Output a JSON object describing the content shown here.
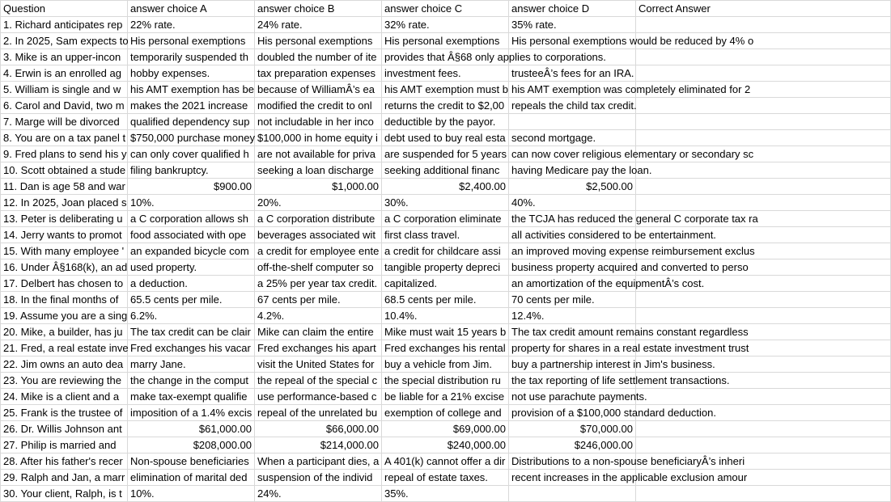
{
  "headers": [
    "Question",
    "answer choice A",
    "answer choice B",
    "answer choice C",
    "answer choice D",
    "Correct Answer"
  ],
  "rows": [
    [
      "1. Richard anticipates rep",
      "22% rate.",
      "24% rate.",
      "32% rate.",
      "35% rate.",
      ""
    ],
    [
      "2. In 2025, Sam expects to",
      "His personal exemptions",
      "His personal exemptions",
      "His personal exemptions",
      "His personal exemptions would be reduced by 4% o",
      ""
    ],
    [
      "3. Mike is an upper-incon",
      "temporarily suspended th",
      "doubled the number of ite",
      "provides that Â§68 only applies to corporations.",
      "",
      ""
    ],
    [
      "4. Erwin is an enrolled ag",
      "hobby expenses.",
      "tax preparation expenses",
      "investment fees.",
      "trusteeÂ’s fees for an IRA.",
      ""
    ],
    [
      "5. William is single and w",
      "his AMT exemption has be",
      "because of WilliamÂ’s ea",
      "his AMT exemption must b",
      "his AMT exemption was completely eliminated for 2",
      ""
    ],
    [
      "6. Carol and David, two m",
      "makes the 2021 increase",
      "modified the credit to onl",
      "returns the credit to $2,00",
      "repeals the child tax credit.",
      ""
    ],
    [
      "7. Marge will be divorced",
      "qualified dependency sup",
      "not includable in her inco",
      "deductible by the payor.",
      "",
      ""
    ],
    [
      "8. You are on a tax panel t",
      "$750,000 purchase money",
      "$100,000 in home equity i",
      "debt used to buy real esta",
      "second mortgage.",
      ""
    ],
    [
      "9. Fred plans to send his y",
      "can only cover qualified h",
      "are not available for priva",
      "are suspended for 5 years",
      "can now cover religious elementary or secondary sc",
      ""
    ],
    [
      "10. Scott obtained a stude",
      "filing bankruptcy.",
      "seeking a loan discharge",
      "seeking additional financ",
      "having Medicare pay the loan.",
      ""
    ],
    [
      "11. Dan is age 58 and war",
      "$900.00",
      "$1,000.00",
      "$2,400.00",
      "$2,500.00",
      ""
    ],
    [
      "12. In 2025, Joan placed s",
      "10%.",
      "20%.",
      "30%.",
      "40%.",
      ""
    ],
    [
      "13. Peter is deliberating u",
      "a C corporation allows sh",
      "a C corporation distribute",
      "a C corporation eliminate",
      "the TCJA has reduced the general C corporate tax ra",
      ""
    ],
    [
      "14. Jerry wants to promot",
      "food associated with ope",
      "beverages associated wit",
      "first class travel.",
      "all activities considered to be entertainment.",
      ""
    ],
    [
      "15. With many employee '",
      "an expanded bicycle com",
      "a credit for employee ente",
      "a credit for childcare assi",
      "an improved moving expense reimbursement exclus",
      ""
    ],
    [
      "16. Under Â§168(k), an ad",
      "used property.",
      "off-the-shelf computer so",
      "tangible property depreci",
      "business property acquired and converted to perso",
      ""
    ],
    [
      "17. Delbert has chosen to",
      "a deduction.",
      "a 25% per year tax credit.",
      "capitalized.",
      "an amortization of the equipmentÂ’s cost.",
      ""
    ],
    [
      "18. In the final months of",
      "65.5 cents per mile.",
      "67 cents per mile.",
      "68.5 cents per mile.",
      "70 cents per mile.",
      ""
    ],
    [
      "19. Assume you are a sing",
      "6.2%.",
      "4.2%.",
      "10.4%.",
      "12.4%.",
      ""
    ],
    [
      "20. Mike, a builder, has ju",
      "The tax credit can be clair",
      "Mike can claim the entire",
      "Mike must wait 15 years b",
      "The tax credit amount remains constant regardless",
      ""
    ],
    [
      "21. Fred, a real estate inve",
      "Fred exchanges his vacar",
      "Fred exchanges his apart",
      "Fred exchanges his rental",
      "property for shares in a real estate investment trust",
      ""
    ],
    [
      "22. Jim owns an auto dea",
      "marry Jane.",
      "visit the United States for",
      "buy a vehicle from Jim.",
      "buy a partnership interest in Jim's business.",
      ""
    ],
    [
      "23. You are reviewing the",
      "the change in the comput",
      "the repeal of the special c",
      "the special distribution ru",
      "the tax reporting of life settlement transactions.",
      ""
    ],
    [
      "24. Mike is a client and a",
      "make tax-exempt qualifie",
      "use performance-based c",
      "be liable for a 21% excise",
      "not use parachute payments.",
      ""
    ],
    [
      "25. Frank is the trustee of",
      "imposition of a 1.4% excis",
      "repeal of the unrelated bu",
      "exemption of college and",
      "provision of a $100,000 standard deduction.",
      ""
    ],
    [
      "26. Dr. Willis Johnson ant",
      "$61,000.00",
      "$66,000.00",
      "$69,000.00",
      "$70,000.00",
      ""
    ],
    [
      "27. Philip is married and",
      "$208,000.00",
      "$214,000.00",
      "$240,000.00",
      "$246,000.00",
      ""
    ],
    [
      "28. After his father's recer",
      "Non-spouse beneficiaries",
      "When a participant dies, a",
      "A 401(k) cannot offer a dir",
      "Distributions to a non-spouse beneficiaryÂ’s inheri",
      ""
    ],
    [
      "29. Ralph and Jan, a marr",
      "elimination of marital ded",
      "suspension of the individ",
      "repeal of estate taxes.",
      "recent increases in the applicable exclusion amour",
      ""
    ],
    [
      "30. Your client, Ralph, is t",
      "10%.",
      "24%.",
      "35%.",
      "",
      ""
    ]
  ],
  "numeric_rows": [
    10,
    25,
    26
  ]
}
